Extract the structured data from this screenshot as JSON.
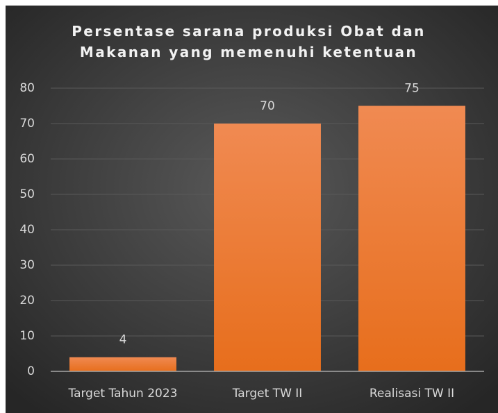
{
  "chart_data": {
    "type": "bar",
    "title": "Persentase sarana produksi Obat dan Makanan yang memenuhi ketentuan",
    "categories": [
      "Target Tahun 2023",
      "Target TW II",
      "Realisasi TW II"
    ],
    "values": [
      4,
      70,
      75
    ],
    "color": "url(#barfill)",
    "ylim": [
      0,
      80
    ],
    "yticks": [
      0,
      10,
      20,
      30,
      40,
      50,
      60,
      70,
      80
    ],
    "grid": true,
    "data_labels": true
  }
}
